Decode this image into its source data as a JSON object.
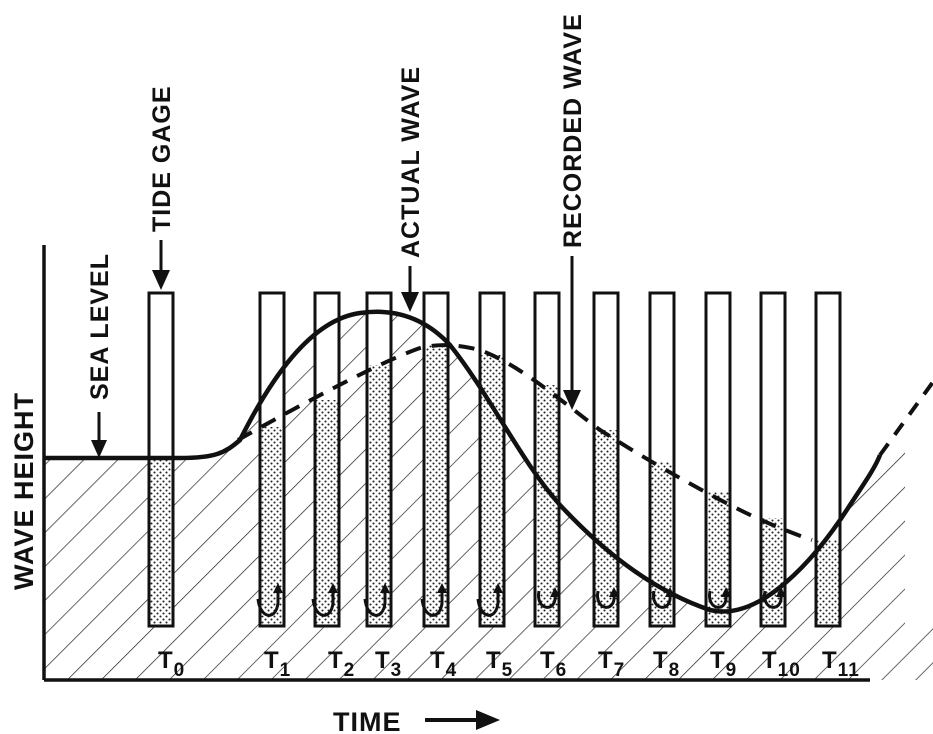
{
  "labels": {
    "y_axis": "WAVE HEIGHT",
    "x_axis": "TIME",
    "sea_level": "SEA LEVEL",
    "tide_gage": "TIDE GAGE",
    "actual_wave": "ACTUAL WAVE",
    "recorded_wave": "RECORDED WAVE"
  },
  "time_marks": [
    {
      "base": "T",
      "sub": "0"
    },
    {
      "base": "T",
      "sub": "1"
    },
    {
      "base": "T",
      "sub": "2"
    },
    {
      "base": "T",
      "sub": "3"
    },
    {
      "base": "T",
      "sub": "4"
    },
    {
      "base": "T",
      "sub": "5"
    },
    {
      "base": "T",
      "sub": "6"
    },
    {
      "base": "T",
      "sub": "7"
    },
    {
      "base": "T",
      "sub": "8"
    },
    {
      "base": "T",
      "sub": "9"
    },
    {
      "base": "T",
      "sub": "10"
    },
    {
      "base": "T",
      "sub": "11"
    }
  ],
  "colors": {
    "ink": "#111111",
    "background": "#ffffff",
    "stipple": "#222222"
  }
}
